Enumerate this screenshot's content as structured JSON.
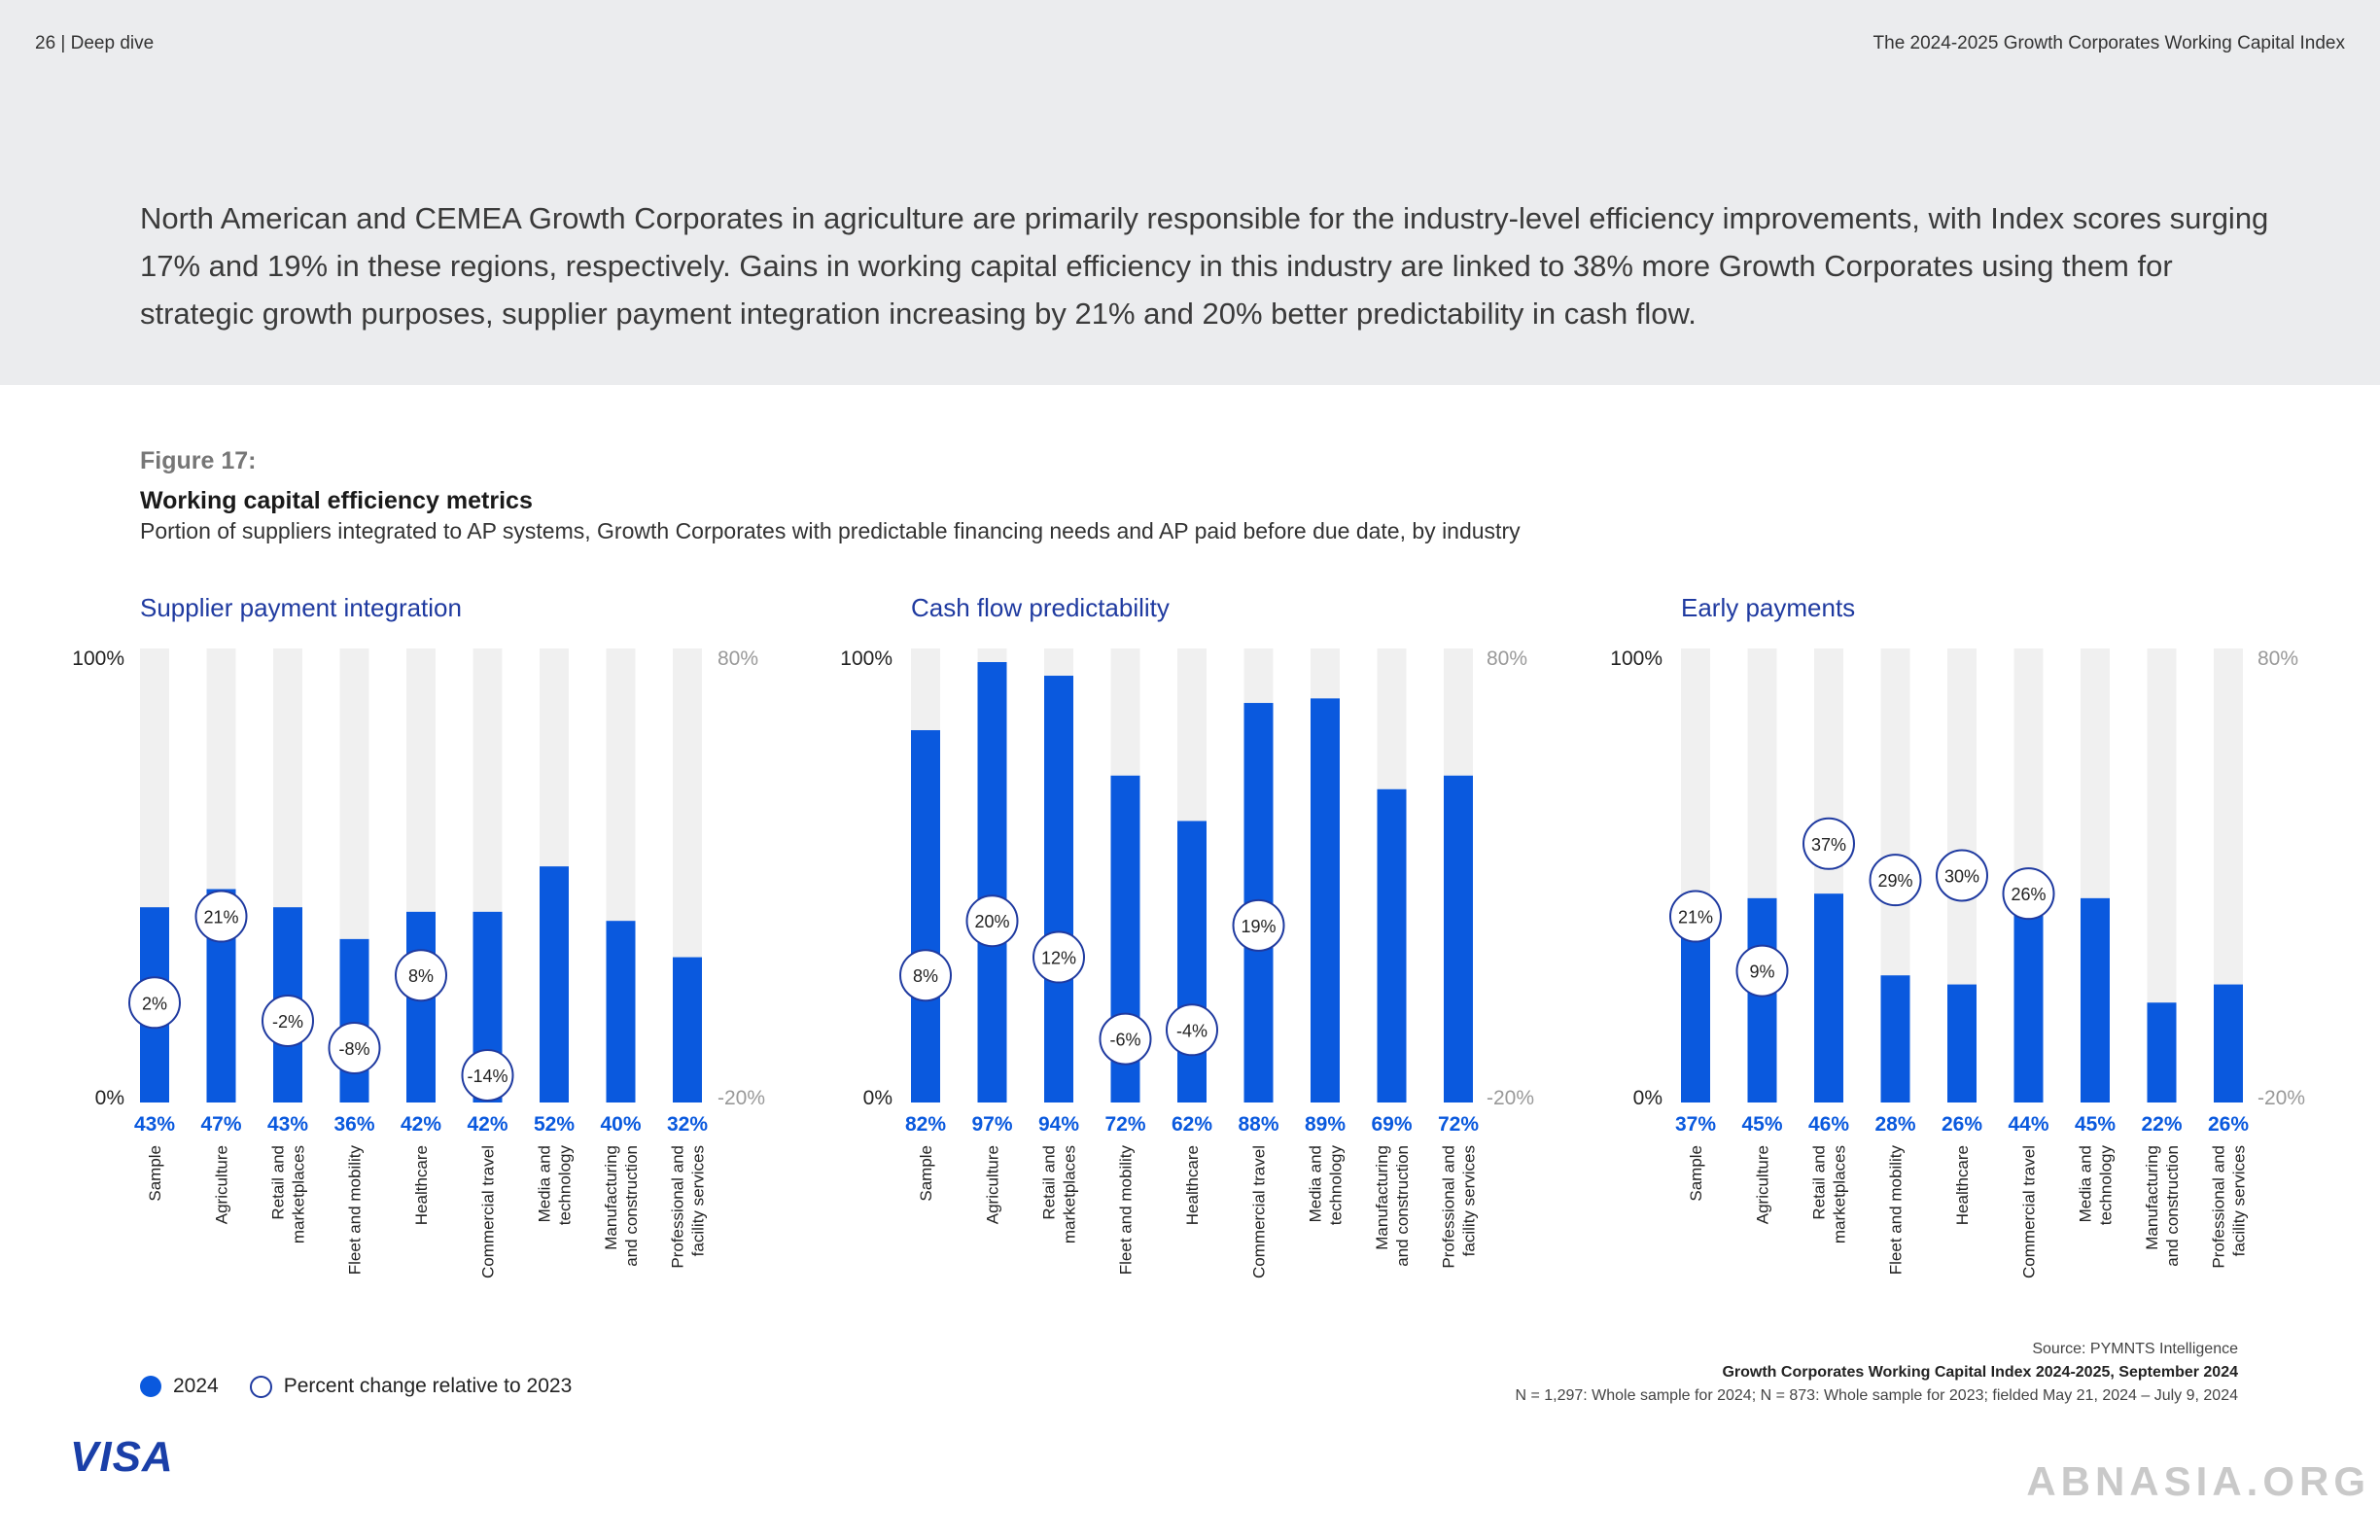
{
  "header": {
    "page_left": "26  |  Deep dive",
    "page_right": "The 2024-2025 Growth Corporates Working Capital Index"
  },
  "intro": "North American and CEMEA Growth Corporates in agriculture are primarily responsible for the industry-level efficiency improvements, with Index scores surging 17% and 19% in these regions, respectively. Gains in working capital efficiency in this industry are linked to 38% more Growth Corporates using them for strategic growth purposes, supplier payment integration increasing by 21% and 20% better predictability in cash flow.",
  "figure": {
    "label": "Figure 17:",
    "title": "Working capital efficiency metrics",
    "subtitle": "Portion of suppliers integrated to AP systems, Growth Corporates with predictable financing needs and AP paid before due date, by industry"
  },
  "chart_data": [
    {
      "type": "bar",
      "title": "Supplier payment integration",
      "categories": [
        "Sample",
        "Agriculture",
        "Retail and marketplaces",
        "Fleet and mobility",
        "Healthcare",
        "Commercial travel",
        "Media and technology",
        "Manufacturing and construction",
        "Professional and facility services"
      ],
      "category_lines": [
        [
          "Sample"
        ],
        [
          "Agriculture"
        ],
        [
          "Retail and",
          "marketplaces"
        ],
        [
          "Fleet and mobility"
        ],
        [
          "Healthcare"
        ],
        [
          "Commercial travel"
        ],
        [
          "Media and",
          "technology"
        ],
        [
          "Manufacturing",
          "and construction"
        ],
        [
          "Professional and",
          "facility services"
        ]
      ],
      "series": [
        {
          "name": "2024",
          "values": [
            43,
            47,
            43,
            36,
            42,
            42,
            52,
            40,
            32
          ]
        },
        {
          "name": "Percent change relative to 2023",
          "values": [
            2,
            21,
            -2,
            -8,
            8,
            -14,
            null,
            null,
            null
          ]
        }
      ],
      "value_labels": [
        "43%",
        "47%",
        "43%",
        "36%",
        "42%",
        "42%",
        "52%",
        "40%",
        "32%"
      ],
      "change_labels": [
        "2%",
        "21%",
        "-2%",
        "-8%",
        "8%",
        "-14%",
        null,
        null,
        null
      ],
      "ylim": [
        0,
        100
      ],
      "y2lim": [
        -20,
        80
      ],
      "y_ticks": [
        "100%",
        "0%"
      ],
      "y2_ticks": [
        "80%",
        "-20%"
      ]
    },
    {
      "type": "bar",
      "title": "Cash flow predictability",
      "categories": [
        "Sample",
        "Agriculture",
        "Retail and marketplaces",
        "Fleet and mobility",
        "Healthcare",
        "Commercial travel",
        "Media and technology",
        "Manufacturing and construction",
        "Professional and facility services"
      ],
      "category_lines": [
        [
          "Sample"
        ],
        [
          "Agriculture"
        ],
        [
          "Retail and",
          "marketplaces"
        ],
        [
          "Fleet and mobility"
        ],
        [
          "Healthcare"
        ],
        [
          "Commercial travel"
        ],
        [
          "Media and",
          "technology"
        ],
        [
          "Manufacturing",
          "and construction"
        ],
        [
          "Professional and",
          "facility services"
        ]
      ],
      "series": [
        {
          "name": "2024",
          "values": [
            82,
            97,
            94,
            72,
            62,
            88,
            89,
            69,
            72
          ]
        },
        {
          "name": "Percent change relative to 2023",
          "values": [
            8,
            20,
            12,
            -6,
            -4,
            19,
            null,
            null,
            null
          ]
        }
      ],
      "value_labels": [
        "82%",
        "97%",
        "94%",
        "72%",
        "62%",
        "88%",
        "89%",
        "69%",
        "72%"
      ],
      "change_labels": [
        "8%",
        "20%",
        "12%",
        "-6%",
        "-4%",
        "19%",
        null,
        null,
        null
      ],
      "ylim": [
        0,
        100
      ],
      "y2lim": [
        -20,
        80
      ],
      "y_ticks": [
        "100%",
        "0%"
      ],
      "y2_ticks": [
        "80%",
        "-20%"
      ]
    },
    {
      "type": "bar",
      "title": "Early payments",
      "categories": [
        "Sample",
        "Agriculture",
        "Retail and marketplaces",
        "Fleet and mobility",
        "Healthcare",
        "Commercial travel",
        "Media and technology",
        "Manufacturing and construction",
        "Professional and facility services"
      ],
      "category_lines": [
        [
          "Sample"
        ],
        [
          "Agriculture"
        ],
        [
          "Retail and",
          "marketplaces"
        ],
        [
          "Fleet and mobility"
        ],
        [
          "Healthcare"
        ],
        [
          "Commercial travel"
        ],
        [
          "Media and",
          "technology"
        ],
        [
          "Manufacturing",
          "and construction"
        ],
        [
          "Professional and",
          "facility services"
        ]
      ],
      "series": [
        {
          "name": "2024",
          "values": [
            37,
            45,
            46,
            28,
            26,
            44,
            45,
            22,
            26
          ]
        },
        {
          "name": "Percent change relative to 2023",
          "values": [
            21,
            9,
            37,
            29,
            30,
            26,
            null,
            null,
            null
          ]
        }
      ],
      "value_labels": [
        "37%",
        "45%",
        "46%",
        "28%",
        "26%",
        "44%",
        "45%",
        "22%",
        "26%"
      ],
      "change_labels": [
        "21%",
        "9%",
        "37%",
        "29%",
        "30%",
        "26%",
        null,
        null,
        null
      ],
      "ylim": [
        0,
        100
      ],
      "y2lim": [
        -20,
        80
      ],
      "y_ticks": [
        "100%",
        "0%"
      ],
      "y2_ticks": [
        "80%",
        "-20%"
      ]
    }
  ],
  "legend": {
    "filled": "2024",
    "open": "Percent change relative to 2023"
  },
  "source": {
    "line1": "Source: PYMNTS Intelligence",
    "line2": "Growth Corporates Working Capital Index 2024-2025, September 2024",
    "line3": "N = 1,297: Whole sample for 2024; N = 873: Whole sample for  2023; fielded May 21, 2024 – July 9, 2024"
  },
  "logo": "VISA",
  "watermark": "ABNASIA.ORG",
  "colors": {
    "bar": "#0a59de",
    "track": "#f0f0f0",
    "title_blue": "#1f3aa0",
    "value_blue": "#0a59de",
    "axis_grey": "#999999"
  }
}
